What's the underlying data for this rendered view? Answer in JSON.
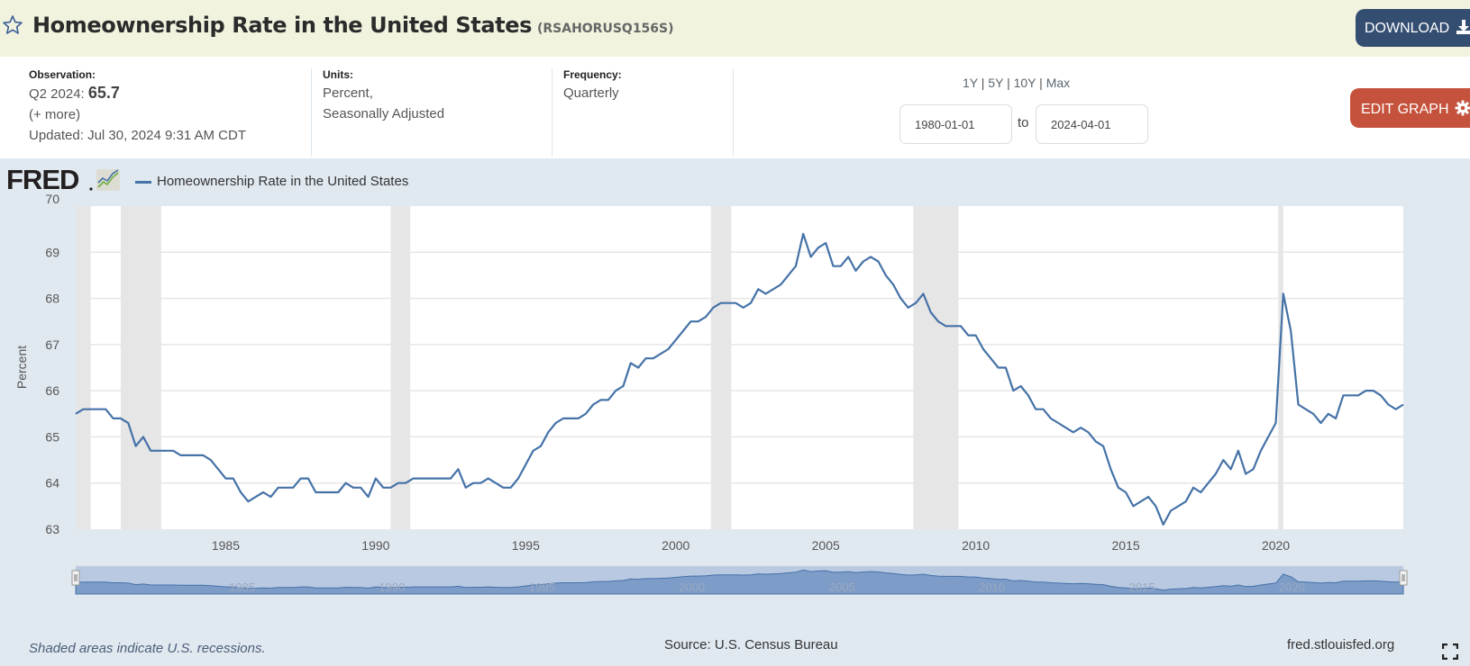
{
  "header": {
    "title": "Homeownership Rate in the United States",
    "series_id": "(RSAHORUSQ156S)",
    "download_label": "DOWNLOAD",
    "star_icon": "star-outline-icon",
    "download_icon": "download-icon"
  },
  "info": {
    "observation_label": "Observation:",
    "observation_period": "Q2 2024:",
    "observation_value": "65.7",
    "more_link": "(+ more)",
    "updated_label": "Updated:",
    "updated_value": "Jul 30, 2024 9:31 AM CDT",
    "units_label": "Units:",
    "units_line1": "Percent,",
    "units_line2": "Seasonally Adjusted",
    "frequency_label": "Frequency:",
    "frequency_value": "Quarterly",
    "range_links": [
      "1Y",
      "5Y",
      "10Y",
      "Max"
    ],
    "range_sep": "|",
    "start_date": "1980-01-01",
    "to_label": "to",
    "end_date": "2024-04-01",
    "edit_label": "EDIT GRAPH",
    "edit_icon": "gear-icon"
  },
  "footer": {
    "recession_note": "Shaded areas indicate U.S. recessions.",
    "source": "Source: U.S. Census Bureau",
    "site": "fred.stlouisfed.org",
    "fullscreen_icon": "fullscreen-icon"
  },
  "logo_text": "FRED",
  "colors": {
    "line": "#4572a7",
    "recession": "#e6e6e6",
    "header_bg": "#f1f3df",
    "chart_bg": "#e1e9f0",
    "download_btn": "#344e72",
    "edit_btn": "#c5523c"
  },
  "chart_data": {
    "type": "line",
    "title": "",
    "legend": [
      "Homeownership Rate in the United States"
    ],
    "legend_position": "top-left",
    "xlabel": "",
    "ylabel": "Percent",
    "ylim": [
      63,
      70
    ],
    "yticks": [
      "63",
      "64",
      "65",
      "66",
      "67",
      "68",
      "69",
      "70"
    ],
    "xlim": [
      1980.0,
      2024.25
    ],
    "xticks": [
      "1985",
      "1990",
      "1995",
      "2000",
      "2005",
      "2010",
      "2015",
      "2020"
    ],
    "navigator_labels": [
      "1985",
      "1990",
      "1995",
      "2000",
      "2005",
      "2010",
      "2015",
      "2020"
    ],
    "grid": true,
    "x_start": 1980.0,
    "x_step": 0.25,
    "recessions": [
      [
        1980.0,
        1980.5
      ],
      [
        1981.5,
        1982.85
      ],
      [
        1990.5,
        1991.15
      ],
      [
        2001.17,
        2001.85
      ],
      [
        2007.92,
        2009.42
      ],
      [
        2020.08,
        2020.25
      ]
    ],
    "series": [
      {
        "name": "Homeownership Rate in the United States",
        "values": [
          65.5,
          65.6,
          65.6,
          65.6,
          65.6,
          65.4,
          65.4,
          65.3,
          64.8,
          65.0,
          64.7,
          64.7,
          64.7,
          64.7,
          64.6,
          64.6,
          64.6,
          64.6,
          64.5,
          64.3,
          64.1,
          64.1,
          63.8,
          63.6,
          63.7,
          63.8,
          63.7,
          63.9,
          63.9,
          63.9,
          64.1,
          64.1,
          63.8,
          63.8,
          63.8,
          63.8,
          64.0,
          63.9,
          63.9,
          63.7,
          64.1,
          63.9,
          63.9,
          64.0,
          64.0,
          64.1,
          64.1,
          64.1,
          64.1,
          64.1,
          64.1,
          64.3,
          63.9,
          64.0,
          64.0,
          64.1,
          64.0,
          63.9,
          63.9,
          64.1,
          64.4,
          64.7,
          64.8,
          65.1,
          65.3,
          65.4,
          65.4,
          65.4,
          65.5,
          65.7,
          65.8,
          65.8,
          66.0,
          66.1,
          66.6,
          66.5,
          66.7,
          66.7,
          66.8,
          66.9,
          67.1,
          67.3,
          67.5,
          67.5,
          67.6,
          67.8,
          67.9,
          67.9,
          67.9,
          67.8,
          67.9,
          68.2,
          68.1,
          68.2,
          68.3,
          68.5,
          68.7,
          69.4,
          68.9,
          69.1,
          69.2,
          68.7,
          68.7,
          68.9,
          68.6,
          68.8,
          68.9,
          68.8,
          68.5,
          68.3,
          68.0,
          67.8,
          67.9,
          68.1,
          67.7,
          67.5,
          67.4,
          67.4,
          67.4,
          67.2,
          67.2,
          66.9,
          66.7,
          66.5,
          66.5,
          66.0,
          66.1,
          65.9,
          65.6,
          65.6,
          65.4,
          65.3,
          65.2,
          65.1,
          65.2,
          65.1,
          64.9,
          64.8,
          64.3,
          63.9,
          63.8,
          63.5,
          63.6,
          63.7,
          63.5,
          63.1,
          63.4,
          63.5,
          63.6,
          63.9,
          63.8,
          64.0,
          64.2,
          64.5,
          64.3,
          64.7,
          64.2,
          64.3,
          64.7,
          65.0,
          65.3,
          68.1,
          67.3,
          65.7,
          65.6,
          65.5,
          65.3,
          65.5,
          65.4,
          65.9,
          65.9,
          65.9,
          66.0,
          66.0,
          65.9,
          65.7,
          65.6,
          65.7
        ]
      }
    ]
  }
}
